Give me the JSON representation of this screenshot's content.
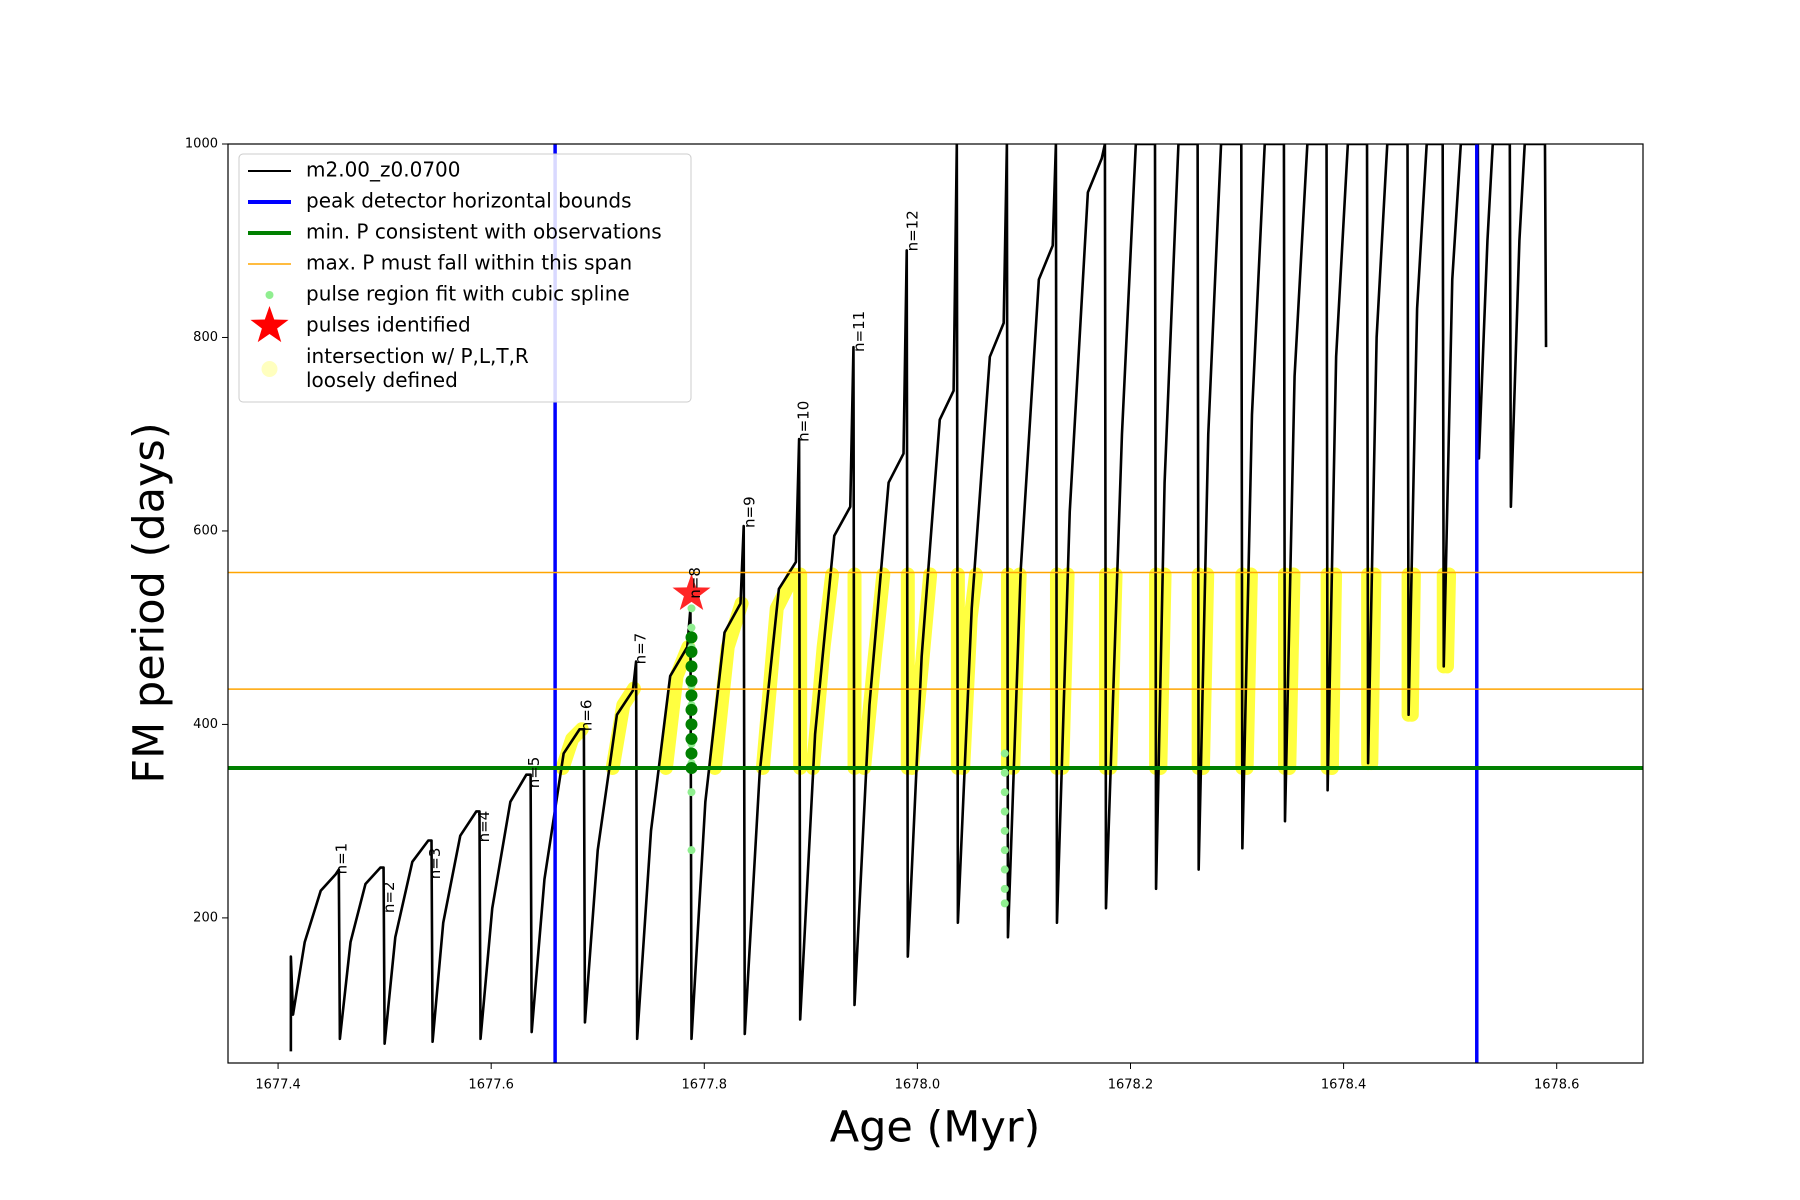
{
  "chart_data": {
    "type": "line",
    "xlabel": "Age (Myr)",
    "ylabel": "FM period (days)",
    "xlim": [
      1677.353,
      1678.681
    ],
    "ylim": [
      50,
      1000
    ],
    "xticks": [
      1677.4,
      1677.6,
      1677.8,
      {
        "value": 1678,
        "label": "1678.0"
      },
      1678.2,
      1678.4,
      1678.6
    ],
    "yticks": [
      200,
      400,
      600,
      800,
      1000
    ],
    "legend": "upper left",
    "series": [
      {
        "name": "m2.00_z0.0700",
        "mark": "line",
        "color": "#000000",
        "x": [
          1677.412,
          1677.412,
          1677.414,
          1677.425,
          1677.44,
          1677.454,
          1677.457,
          1677.458,
          1677.468,
          1677.482,
          1677.496,
          1677.499,
          1677.5,
          1677.51,
          1677.526,
          1677.541,
          1677.544,
          1677.545,
          1677.555,
          1677.571,
          1677.586,
          1677.589,
          1677.59,
          1677.601,
          1677.618,
          1677.633,
          1677.637,
          1677.638,
          1677.65,
          1677.668,
          1677.683,
          1677.687,
          1677.688,
          1677.7,
          1677.718,
          1677.733,
          1677.736,
          1677.737,
          1677.75,
          1677.768,
          1677.784,
          1677.787,
          1677.788,
          1677.801,
          1677.819,
          1677.834,
          1677.837,
          1677.838,
          1677.852,
          1677.87,
          1677.886,
          1677.889,
          1677.89,
          1677.904,
          1677.922,
          1677.937,
          1677.94,
          1677.941,
          1677.955,
          1677.973,
          1677.987,
          1677.99,
          1677.991,
          1678.004,
          1678.021,
          1678.034,
          1678.037,
          1678.038,
          1678.051,
          1678.068,
          1678.081,
          1678.084,
          1678.085,
          1678.097,
          1678.114,
          1678.127,
          1678.13,
          1678.131,
          1678.143,
          1678.16,
          1678.173,
          1678.176,
          1678.177,
          1678.192,
          1678.205,
          1678.223,
          1678.224,
          1678.232,
          1678.245,
          1678.263,
          1678.264,
          1678.273,
          1678.285,
          1678.304,
          1678.305,
          1678.314,
          1678.326,
          1678.344,
          1678.345,
          1678.354,
          1678.366,
          1678.384,
          1678.385,
          1678.393,
          1678.404,
          1678.422,
          1678.423,
          1678.431,
          1678.441,
          1678.46,
          1678.461,
          1678.469,
          1678.478,
          1678.493,
          1678.494,
          1678.502,
          1678.51,
          1678.526,
          1678.527,
          1678.535,
          1678.54,
          1678.556,
          1678.557,
          1678.565,
          1678.57,
          1678.589,
          1678.59
        ],
        "values": [
          62,
          160,
          100,
          175,
          228,
          245,
          250,
          75,
          175,
          235,
          252,
          252,
          70,
          180,
          258,
          280,
          280,
          72,
          195,
          285,
          310,
          310,
          75,
          210,
          320,
          348,
          348,
          82,
          240,
          370,
          395,
          395,
          92,
          270,
          410,
          435,
          465,
          75,
          290,
          450,
          480,
          520,
          75,
          320,
          495,
          525,
          605,
          80,
          350,
          540,
          568,
          695,
          95,
          390,
          595,
          625,
          790,
          110,
          420,
          650,
          680,
          890,
          160,
          470,
          715,
          745,
          1000,
          195,
          520,
          780,
          815,
          1000,
          180,
          560,
          860,
          895,
          1000,
          195,
          620,
          950,
          985,
          1000,
          210,
          700,
          1000,
          1000,
          230,
          650,
          1000,
          1000,
          250,
          700,
          1000,
          1000,
          272,
          720,
          1000,
          1000,
          300,
          760,
          1000,
          1000,
          332,
          780,
          1000,
          1000,
          360,
          800,
          1000,
          1000,
          410,
          830,
          1000,
          1000,
          460,
          860,
          1000,
          1000,
          675,
          900,
          1000,
          1000,
          625,
          900,
          1000,
          1000,
          790
        ]
      },
      {
        "name": "peak detector horizontal bounds",
        "mark": "vline",
        "color": "#0000ff",
        "x": [
          1677.66,
          1678.525
        ]
      },
      {
        "name": "min. P consistent with observations",
        "mark": "hline",
        "color": "#008000",
        "values": [
          355
        ]
      },
      {
        "name": "max. P must fall within this span",
        "mark": "hline",
        "color": "#ffa500",
        "values": [
          436.5,
          557
        ]
      },
      {
        "name": "pulse region fit with cubic spline",
        "mark": "points",
        "color": "#90ee90",
        "x": [
          1677.788,
          1677.788,
          1677.788,
          1677.788,
          1677.788,
          1677.788,
          1677.788,
          1677.788,
          1677.788,
          1677.788,
          1677.788,
          1678.082,
          1678.082,
          1678.082,
          1678.082,
          1678.082,
          1678.082,
          1678.082,
          1678.082,
          1678.082
        ],
        "values": [
          270,
          330,
          360,
          380,
          400,
          420,
          440,
          460,
          480,
          500,
          520,
          215,
          230,
          250,
          270,
          290,
          310,
          330,
          350,
          370
        ]
      },
      {
        "name": "pulses identified",
        "mark": "star",
        "color": "#ff0000",
        "x": [
          1677.788
        ],
        "values": [
          535
        ]
      },
      {
        "name": "intersection w/ P,L,T,R\nloosely defined",
        "mark": "band",
        "color": "#ffff00",
        "x": [
          1677.667,
          1677.676,
          1677.685,
          null,
          1677.714,
          1677.724,
          1677.734,
          null,
          1677.764,
          1677.774,
          1677.785,
          null,
          1677.81,
          1677.822,
          1677.835,
          null,
          1677.855,
          1677.868,
          1677.884,
          null,
          1677.89,
          1677.89,
          null,
          1677.902,
          1677.912,
          1677.92,
          null,
          1677.941,
          1677.941,
          null,
          1677.95,
          1677.96,
          1677.968,
          null,
          1677.991,
          1677.991,
          null,
          1677.995,
          1678.005,
          1678.012,
          null,
          1678.038,
          1678.038,
          null,
          1678.043,
          1678.05,
          1678.055,
          null,
          1678.085,
          1678.085,
          null,
          1678.09,
          1678.096,
          null,
          1678.131,
          1678.131,
          null,
          1678.136,
          1678.141,
          null,
          1678.177,
          1678.177,
          null,
          1678.181,
          1678.186,
          null,
          1678.224,
          1678.224,
          null,
          1678.228,
          1678.232,
          null,
          1678.264,
          1678.264,
          null,
          1678.268,
          1678.272,
          null,
          1678.305,
          1678.305,
          null,
          1678.309,
          1678.313,
          null,
          1678.345,
          1678.345,
          null,
          1678.349,
          1678.353,
          null,
          1678.385,
          1678.385,
          null,
          1678.389,
          1678.392,
          null,
          1678.423,
          1678.423,
          null,
          1678.426,
          1678.429,
          null,
          1678.461,
          1678.461,
          null,
          1678.464,
          1678.466,
          null,
          1678.494,
          1678.494,
          null,
          1678.497,
          1678.499
        ],
        "values": [
          355,
          385,
          395,
          null,
          355,
          420,
          437,
          null,
          355,
          450,
          480,
          null,
          355,
          480,
          525,
          null,
          355,
          520,
          555,
          null,
          555,
          355,
          null,
          355,
          480,
          555,
          null,
          555,
          355,
          null,
          355,
          470,
          555,
          null,
          555,
          355,
          null,
          355,
          470,
          555,
          null,
          555,
          355,
          null,
          355,
          510,
          555,
          null,
          555,
          355,
          null,
          355,
          555,
          null,
          555,
          355,
          null,
          355,
          555,
          null,
          555,
          355,
          null,
          355,
          555,
          null,
          555,
          355,
          null,
          355,
          555,
          null,
          555,
          355,
          null,
          355,
          555,
          null,
          555,
          355,
          null,
          355,
          555,
          null,
          555,
          355,
          null,
          355,
          555,
          null,
          555,
          355,
          null,
          355,
          555,
          null,
          555,
          360,
          null,
          360,
          555,
          null,
          555,
          410,
          null,
          410,
          555,
          null,
          555,
          460,
          null,
          460,
          555
        ]
      },
      {
        "mark": "points",
        "color": "#008000",
        "x": [
          1677.788,
          1677.788,
          1677.788,
          1677.788,
          1677.788,
          1677.788,
          1677.788,
          1677.788,
          1677.788,
          1677.788
        ],
        "values": [
          355,
          370,
          385,
          400,
          415,
          430,
          445,
          460,
          475,
          490
        ]
      }
    ],
    "annotations": [
      {
        "text": "n=1",
        "x": 1677.464,
        "y": 245
      },
      {
        "text": "n=2",
        "x": 1677.509,
        "y": 205
      },
      {
        "text": "n=3",
        "x": 1677.552,
        "y": 240
      },
      {
        "text": "n=4",
        "x": 1677.598,
        "y": 278
      },
      {
        "text": "n=5",
        "x": 1677.645,
        "y": 334
      },
      {
        "text": "n=6",
        "x": 1677.694,
        "y": 393
      },
      {
        "text": "n=7",
        "x": 1677.745,
        "y": 462
      },
      {
        "text": "n=8",
        "x": 1677.796,
        "y": 530
      },
      {
        "text": "n=9",
        "x": 1677.847,
        "y": 603
      },
      {
        "text": "n=10",
        "x": 1677.898,
        "y": 692
      },
      {
        "text": "n=11",
        "x": 1677.95,
        "y": 785
      },
      {
        "text": "n=12",
        "x": 1678.0,
        "y": 889
      }
    ]
  }
}
